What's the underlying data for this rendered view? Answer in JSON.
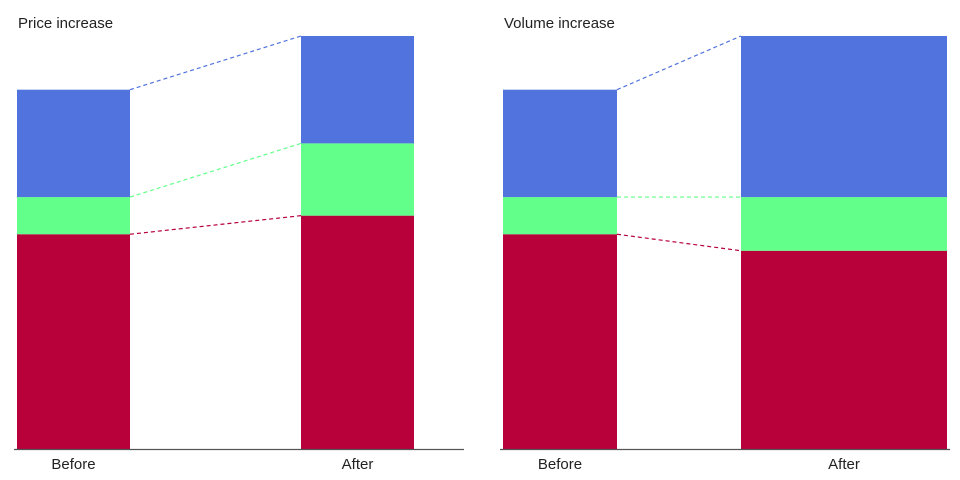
{
  "colors": {
    "cost": "#b8003b",
    "margin": "#62ff8a",
    "top": "#5173dd"
  },
  "chart_data": [
    {
      "type": "bar",
      "stacked": true,
      "variable_width": true,
      "title": "Price increase",
      "categories": [
        "Before",
        "After"
      ],
      "widths": [
        1,
        1
      ],
      "ylim": [
        0,
        100
      ],
      "series": [
        {
          "values": [
            52,
            56.5
          ],
          "color_key": "cost"
        },
        {
          "values": [
            9,
            17.5
          ],
          "color_key": "margin"
        },
        {
          "values": [
            26,
            26
          ],
          "color_key": "top"
        }
      ],
      "connectors": "dashed lines linking segment tops between bars",
      "grid": false,
      "legend": "none"
    },
    {
      "type": "bar",
      "stacked": true,
      "variable_width": true,
      "title": "Volume increase",
      "categories": [
        "Before",
        "After"
      ],
      "widths": [
        1,
        1.8
      ],
      "ylim": [
        0,
        100
      ],
      "series": [
        {
          "values": [
            52,
            48
          ],
          "color_key": "cost"
        },
        {
          "values": [
            9,
            13
          ],
          "color_key": "margin"
        },
        {
          "values": [
            26,
            39
          ],
          "color_key": "top"
        }
      ],
      "connectors": "dashed lines linking segment tops between bars",
      "grid": false,
      "legend": "none"
    }
  ]
}
